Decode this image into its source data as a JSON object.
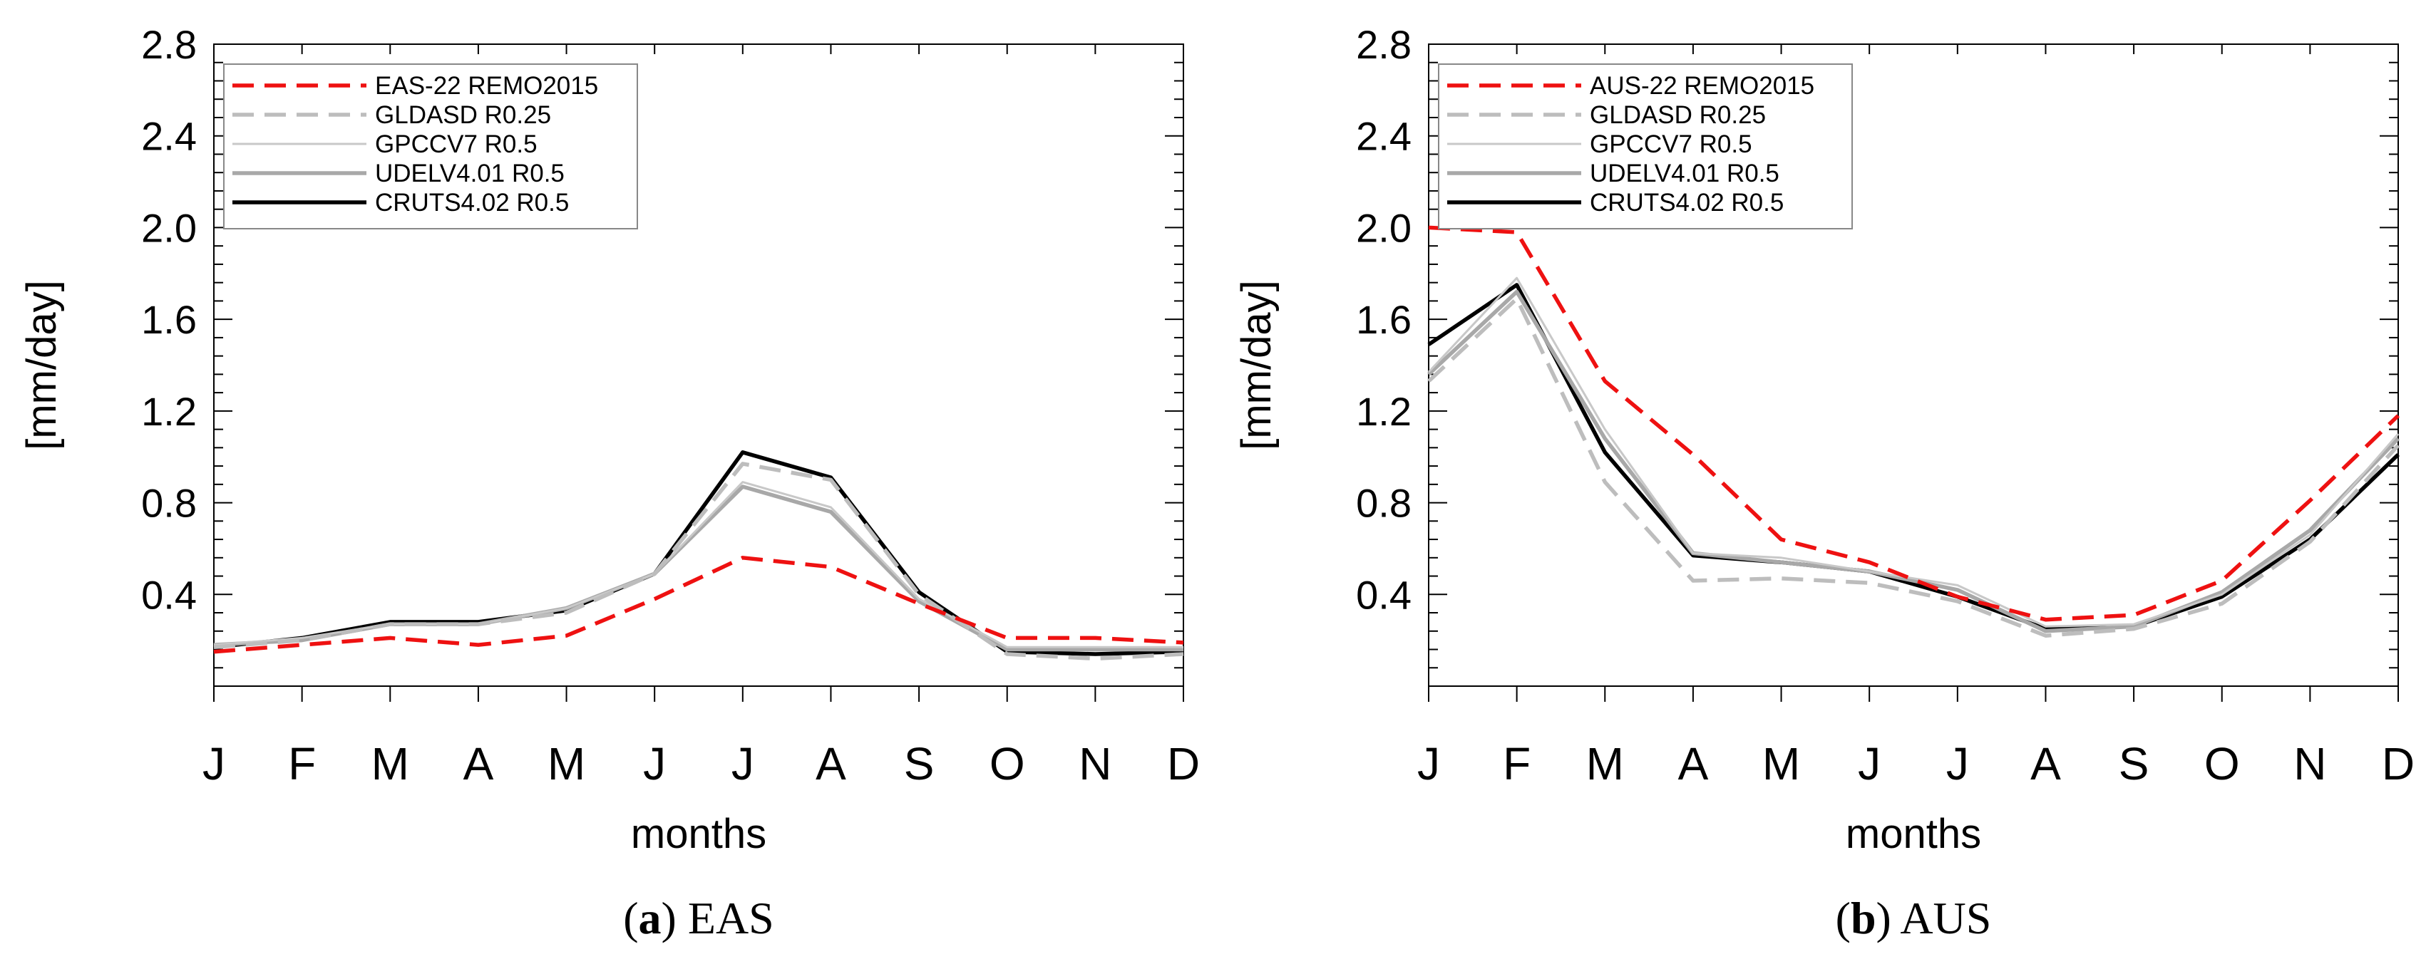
{
  "chart_data": [
    {
      "type": "line",
      "caption_letter": "a",
      "caption_text": "EAS",
      "xlabel": "months",
      "ylabel": "[mm/day]",
      "categories": [
        "J",
        "F",
        "M",
        "A",
        "M",
        "J",
        "J",
        "A",
        "S",
        "O",
        "N",
        "D"
      ],
      "ylim": [
        0.0,
        2.8
      ],
      "yticks": [
        "0.4",
        "0.8",
        "1.2",
        "1.6",
        "2.0",
        "2.4",
        "2.8"
      ],
      "series": [
        {
          "name": "EAS-22 REMO2015",
          "color": "#ee1111",
          "dash": "long",
          "width": "bold",
          "values": [
            0.15,
            0.18,
            0.21,
            0.18,
            0.22,
            0.38,
            0.56,
            0.52,
            0.36,
            0.21,
            0.21,
            0.19
          ]
        },
        {
          "name": "GLDASD R0.25",
          "color": "#bdbdbd",
          "dash": "long",
          "width": "bold",
          "values": [
            0.17,
            0.2,
            0.27,
            0.27,
            0.32,
            0.49,
            0.97,
            0.9,
            0.4,
            0.14,
            0.12,
            0.14
          ]
        },
        {
          "name": "GPCCV7 R0.5",
          "color": "#c8c8c8",
          "dash": "solid",
          "width": "thin",
          "values": [
            0.18,
            0.21,
            0.27,
            0.27,
            0.34,
            0.49,
            0.89,
            0.78,
            0.38,
            0.17,
            0.17,
            0.17
          ]
        },
        {
          "name": "UDELV4.01 R0.5",
          "color": "#a8a8a8",
          "dash": "solid",
          "width": "bold",
          "values": [
            0.18,
            0.2,
            0.27,
            0.27,
            0.34,
            0.49,
            0.87,
            0.76,
            0.37,
            0.16,
            0.16,
            0.16
          ]
        },
        {
          "name": "CRUTS4.02 R0.5",
          "color": "#000000",
          "dash": "solid",
          "width": "bold",
          "values": [
            0.17,
            0.21,
            0.28,
            0.28,
            0.33,
            0.49,
            1.02,
            0.91,
            0.41,
            0.15,
            0.14,
            0.15
          ]
        }
      ]
    },
    {
      "type": "line",
      "caption_letter": "b",
      "caption_text": "AUS",
      "xlabel": "months",
      "ylabel": "[mm/day]",
      "categories": [
        "J",
        "F",
        "M",
        "A",
        "M",
        "J",
        "J",
        "A",
        "S",
        "O",
        "N",
        "D"
      ],
      "ylim": [
        0.0,
        2.8
      ],
      "yticks": [
        "0.4",
        "0.8",
        "1.2",
        "1.6",
        "2.0",
        "2.4",
        "2.8"
      ],
      "series": [
        {
          "name": "AUS-22 REMO2015",
          "color": "#ee1111",
          "dash": "long",
          "width": "bold",
          "values": [
            2.0,
            1.98,
            1.33,
            1.01,
            0.64,
            0.54,
            0.39,
            0.29,
            0.31,
            0.46,
            0.81,
            1.18
          ]
        },
        {
          "name": "GLDASD R0.25",
          "color": "#bdbdbd",
          "dash": "long",
          "width": "bold",
          "values": [
            1.33,
            1.69,
            0.89,
            0.46,
            0.47,
            0.45,
            0.37,
            0.22,
            0.25,
            0.36,
            0.63,
            1.05
          ]
        },
        {
          "name": "GPCCV7 R0.5",
          "color": "#c8c8c8",
          "dash": "solid",
          "width": "thin",
          "values": [
            1.37,
            1.78,
            1.12,
            0.58,
            0.56,
            0.5,
            0.44,
            0.26,
            0.27,
            0.4,
            0.66,
            1.1
          ]
        },
        {
          "name": "UDELV4.01 R0.5",
          "color": "#a8a8a8",
          "dash": "solid",
          "width": "bold",
          "values": [
            1.36,
            1.72,
            1.08,
            0.58,
            0.54,
            0.5,
            0.42,
            0.24,
            0.26,
            0.41,
            0.68,
            1.08
          ]
        },
        {
          "name": "CRUTS4.02 R0.5",
          "color": "#000000",
          "dash": "solid",
          "width": "bold",
          "values": [
            1.49,
            1.75,
            1.02,
            0.57,
            0.54,
            0.5,
            0.39,
            0.25,
            0.26,
            0.39,
            0.64,
            1.01
          ]
        }
      ]
    }
  ]
}
